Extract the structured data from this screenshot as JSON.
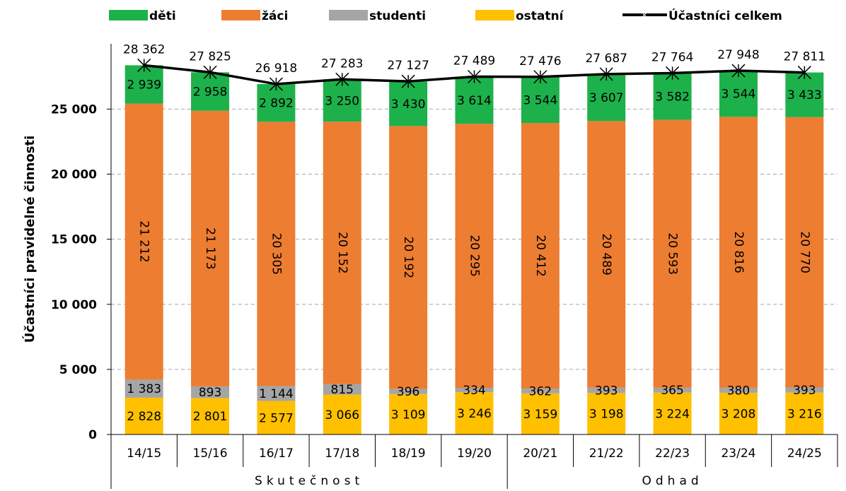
{
  "chart_data": {
    "type": "bar",
    "stacked": true,
    "ylabel": "Účastníci pravidelné činnosti",
    "ylim": [
      0,
      30000
    ],
    "yticks": [
      0,
      5000,
      10000,
      15000,
      20000,
      25000
    ],
    "ytick_labels": [
      "0",
      "5 000",
      "10 000",
      "15 000",
      "20 000",
      "25 000"
    ],
    "grid": "horizontal-dashed",
    "legend_position": "top",
    "categories": [
      "14/15",
      "15/16",
      "16/17",
      "17/18",
      "18/19",
      "19/20",
      "20/21",
      "21/22",
      "22/23",
      "23/24",
      "24/25"
    ],
    "series": [
      {
        "name": "ostatní",
        "color": "#FFC000",
        "values": [
          2828,
          2801,
          2577,
          3066,
          3109,
          3246,
          3159,
          3198,
          3224,
          3208,
          3216
        ],
        "labels": [
          "2 828",
          "2 801",
          "2 577",
          "3 066",
          "3 109",
          "3 246",
          "3 159",
          "3 198",
          "3 224",
          "3 208",
          "3 216"
        ]
      },
      {
        "name": "studenti",
        "color": "#A5A5A5",
        "values": [
          1383,
          893,
          1144,
          815,
          396,
          334,
          362,
          393,
          365,
          380,
          393
        ],
        "labels": [
          "1 383",
          "893",
          "1 144",
          "815",
          "396",
          "334",
          "362",
          "393",
          "365",
          "380",
          "393"
        ]
      },
      {
        "name": "žáci",
        "color": "#ED7D31",
        "values": [
          21212,
          21173,
          20305,
          20152,
          20192,
          20295,
          20412,
          20489,
          20593,
          20816,
          20770
        ],
        "labels": [
          "21 212",
          "21 173",
          "20 305",
          "20 152",
          "20 192",
          "20 295",
          "20 412",
          "20 489",
          "20 593",
          "20 816",
          "20 770"
        ]
      },
      {
        "name": "děti",
        "color": "#1DB14B",
        "values": [
          2939,
          2958,
          2892,
          3250,
          3430,
          3614,
          3544,
          3607,
          3582,
          3544,
          3433
        ],
        "labels": [
          "2 939",
          "2 958",
          "2 892",
          "3 250",
          "3 430",
          "3 614",
          "3 544",
          "3 607",
          "3 582",
          "3 544",
          "3 433"
        ]
      }
    ],
    "total_line": {
      "name": "Účastníci celkem",
      "color": "#000000",
      "marker": "asterisk",
      "values": [
        28362,
        27825,
        26918,
        27283,
        27127,
        27489,
        27476,
        27687,
        27764,
        27948,
        27811
      ],
      "labels": [
        "28 362",
        "27 825",
        "26 918",
        "27 283",
        "27 127",
        "27 489",
        "27 476",
        "27 687",
        "27 764",
        "27 948",
        "27 811"
      ]
    },
    "legend_order": [
      "děti",
      "žáci",
      "studenti",
      "ostatní",
      "Účastníci celkem"
    ],
    "groups": [
      {
        "label": "Skutečnost",
        "from": 0,
        "to": 5
      },
      {
        "label": "Odhad",
        "from": 6,
        "to": 10
      }
    ]
  }
}
